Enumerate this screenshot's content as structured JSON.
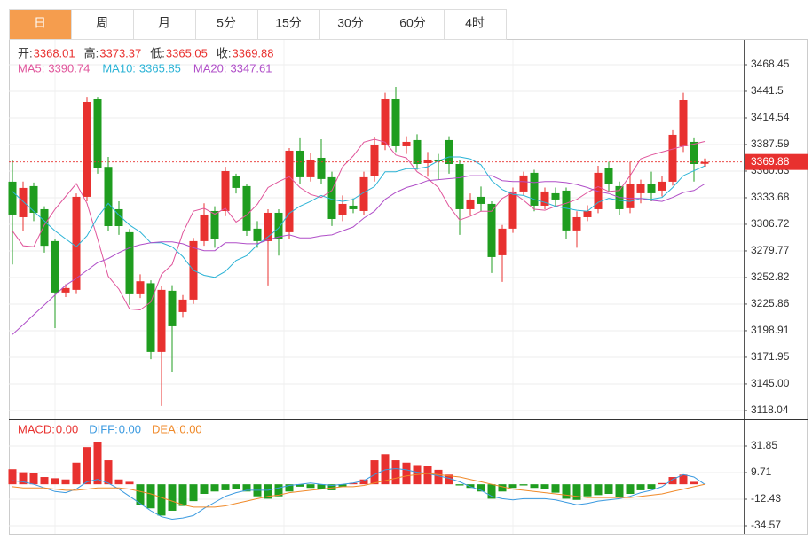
{
  "tabs": [
    "日",
    "周",
    "月",
    "5分",
    "15分",
    "30分",
    "60分",
    "4时"
  ],
  "active_tab": 0,
  "chart_data": [
    {
      "type": "candlestick",
      "ohlc_labels": [
        "开:",
        "高:",
        "低:",
        "收:"
      ],
      "up_color": "#e8312f",
      "down_color": "#1f9d1f",
      "open": [
        3349.9,
        3313.9,
        3345.4,
        3322.0,
        3289.7,
        3237.6,
        3240.3,
        3334.6,
        3433.4,
        3364.9,
        3322.0,
        3298.7,
        3235.8,
        3247.0,
        3177.4,
        3239.4,
        3217.8,
        3230.4,
        3289.7,
        3320.2,
        3320.2,
        3355.3,
        3345.4,
        3302.3,
        3289.7,
        3318.4,
        3298.7,
        3381.3,
        3354.4,
        3374.1,
        3354.4,
        3315.7,
        3325.6,
        3320.2,
        3355.3,
        3386.7,
        3433.4,
        3385.8,
        3392.1,
        3368.7,
        3372.3,
        3392.1,
        3367.8,
        3322.0,
        3334.6,
        3327.4,
        3275.3,
        3302.3,
        3340.0,
        3358.9,
        3325.6,
        3338.2,
        3340.9,
        3300.5,
        3313.9,
        3322.0,
        3363.3,
        3345.4,
        3323.0,
        3338.2,
        3347.2,
        3340.9,
        3349.9,
        3385.8,
        3390.3,
        3368.01
      ],
      "high": [
        3372,
        3350,
        3349,
        3325,
        3292,
        3246,
        3338,
        3436,
        3436,
        3375,
        3330,
        3302,
        3256,
        3250,
        3244,
        3245,
        3235,
        3293,
        3328,
        3325,
        3365,
        3358,
        3348,
        3310,
        3322,
        3322,
        3384,
        3394,
        3379,
        3393,
        3360,
        3336,
        3333,
        3360,
        3395,
        3440,
        3446,
        3396,
        3398,
        3380,
        3378,
        3396,
        3372,
        3338,
        3345,
        3330,
        3306,
        3344,
        3360,
        3362,
        3344,
        3344,
        3344,
        3320,
        3326,
        3366,
        3370,
        3350,
        3370,
        3352,
        3360,
        3356,
        3402,
        3440,
        3394,
        3373.37
      ],
      "low": [
        3266,
        3300,
        3310,
        3278,
        3201.6,
        3233,
        3236,
        3330,
        3358,
        3300,
        3296,
        3225,
        3232,
        3170,
        3122.6,
        3156.7,
        3212,
        3226,
        3285,
        3283,
        3315,
        3338,
        3295,
        3283,
        3244.8,
        3275,
        3292,
        3348,
        3350,
        3348,
        3305,
        3310,
        3318,
        3316,
        3350,
        3382,
        3380,
        3378,
        3362,
        3355,
        3352,
        3358,
        3296,
        3316,
        3320,
        3257.4,
        3248.4,
        3298,
        3336,
        3320,
        3322,
        3325,
        3292,
        3283,
        3310,
        3318,
        3340,
        3316,
        3318,
        3328,
        3330,
        3335,
        3346,
        3380,
        3350,
        3365.05
      ],
      "close": [
        3316.6,
        3343.6,
        3318.4,
        3285.0,
        3237.6,
        3242.1,
        3334.6,
        3430.7,
        3363.3,
        3304.9,
        3304.9,
        3235.8,
        3249.0,
        3177.4,
        3240.3,
        3203.4,
        3230.4,
        3289.7,
        3316.6,
        3291.5,
        3360.6,
        3343.6,
        3300.5,
        3289.7,
        3318.4,
        3291.5,
        3381.3,
        3354.4,
        3372.3,
        3352.6,
        3312.1,
        3327.4,
        3322.0,
        3354.4,
        3386.7,
        3433.4,
        3385.8,
        3390.3,
        3367.8,
        3372.3,
        3370.5,
        3367.8,
        3322.0,
        3331.9,
        3327.4,
        3273.5,
        3302.3,
        3340.0,
        3356.2,
        3325.6,
        3340.0,
        3331.9,
        3300.5,
        3313.9,
        3320.2,
        3358.9,
        3347.2,
        3322.0,
        3347.2,
        3347.2,
        3338.2,
        3349.9,
        3397.5,
        3432.5,
        3367.8,
        3369.88
      ],
      "ma": [
        {
          "name": "MA5:",
          "color": "#e0559b",
          "values": [
            3300,
            3285,
            3284,
            3306,
            3322,
            3335,
            3348,
            3328,
            3292,
            3254,
            3241,
            3221,
            3220,
            3228,
            3256,
            3266,
            3298,
            3320,
            3323,
            3317,
            3323,
            3309,
            3316,
            3327,
            3344,
            3350,
            3355,
            3344,
            3337,
            3334,
            3341,
            3365,
            3376,
            3390,
            3393,
            3390,
            3377,
            3374,
            3360,
            3353,
            3344,
            3325,
            3311,
            3315,
            3320,
            3320,
            3333,
            3339,
            3331,
            3322,
            3321,
            3325,
            3328,
            3332,
            3339,
            3345,
            3340,
            3341,
            3356,
            3373,
            3377,
            3380,
            3383,
            3386,
            3388,
            3390.74
          ]
        },
        {
          "name": "MA10:",
          "color": "#2bb3d6",
          "values": [
            3340,
            3330,
            3320,
            3310,
            3300,
            3292,
            3284,
            3295,
            3314,
            3328,
            3316,
            3306,
            3299,
            3288,
            3288,
            3284,
            3274,
            3260,
            3255,
            3253,
            3259,
            3270,
            3275,
            3286,
            3294,
            3303,
            3318,
            3325,
            3330,
            3336,
            3332,
            3330,
            3332,
            3339,
            3345,
            3360,
            3360,
            3363,
            3363,
            3365,
            3371,
            3375,
            3375,
            3373,
            3367,
            3351,
            3342,
            3337,
            3336,
            3332,
            3329,
            3325,
            3323,
            3321,
            3320,
            3329,
            3333,
            3331,
            3330,
            3333,
            3332,
            3334,
            3344,
            3356,
            3361,
            3365.85
          ]
        },
        {
          "name": "MA20:",
          "color": "#b04fc8",
          "values": [
            3195,
            3205,
            3215,
            3225,
            3235,
            3245,
            3252,
            3260,
            3268,
            3272,
            3278,
            3283,
            3286,
            3288,
            3289,
            3289,
            3287,
            3283,
            3280,
            3280,
            3288,
            3288,
            3287,
            3287,
            3291,
            3294,
            3296,
            3293,
            3293,
            3295,
            3296,
            3300,
            3304,
            3313,
            3320,
            3332,
            3339,
            3344,
            3347,
            3351,
            3352,
            3353,
            3354,
            3356,
            3356,
            3356,
            3351,
            3350,
            3350,
            3349,
            3350,
            3350,
            3349,
            3347,
            3344,
            3340,
            3338,
            3334,
            3333,
            3333,
            3331,
            3330,
            3334,
            3339,
            3341,
            3347.61
          ]
        }
      ],
      "last_price": 3369.88,
      "ylim": [
        3109.9,
        3493.6
      ],
      "yticks": [
        3468.45,
        3441.5,
        3414.54,
        3387.59,
        3360.63,
        3333.68,
        3306.72,
        3279.77,
        3252.82,
        3225.86,
        3198.91,
        3171.95,
        {
          "value": 3145,
          "label": "3145.00"
        },
        3118.04
      ]
    },
    {
      "type": "macd",
      "up_color": "#e8312f",
      "down_color": "#1f9d1f",
      "header": [
        {
          "name": "MACD:",
          "color": "#e8312f",
          "current": {
            "value": 0,
            "label": "0.00"
          }
        },
        {
          "name": "DIFF:",
          "color": "#3b9ae0",
          "current": {
            "value": 0,
            "label": "0.00"
          }
        },
        {
          "name": "DEA:",
          "color": "#f08a2a",
          "current": {
            "value": 0,
            "label": "0.00"
          }
        }
      ],
      "values": [
        12.5,
        10,
        9,
        6,
        5,
        4,
        18,
        31,
        35,
        20,
        4,
        2,
        -17,
        -20,
        -26,
        -22,
        -18,
        -14,
        -8,
        -6,
        -5,
        -4,
        -6,
        -10,
        -12,
        -10,
        -6,
        -2,
        -3,
        -4,
        -5,
        -2,
        1,
        4,
        20,
        25,
        20,
        18,
        16,
        15,
        12,
        8,
        -1,
        -3,
        -6,
        -12,
        -6,
        -3,
        -1,
        -3,
        -4,
        -7,
        -12,
        -13,
        -10,
        -9,
        -8,
        -11,
        -8,
        -5,
        -4,
        1,
        6,
        8,
        2,
        0
      ],
      "series": [
        {
          "name": "DIFF",
          "color": "#3b9ae0",
          "values": [
            3,
            2,
            0,
            -3,
            -6,
            -7,
            -4,
            2,
            4,
            1,
            -4,
            -10,
            -16,
            -22,
            -27,
            -29,
            -28,
            -26,
            -20,
            -15,
            -10,
            -7,
            -5,
            -5,
            -5,
            -3,
            -1,
            0,
            1,
            0,
            -1,
            0,
            1,
            3,
            8,
            12,
            13,
            12,
            10,
            9,
            7,
            5,
            2,
            -2,
            -5,
            -10,
            -12,
            -13,
            -12,
            -12,
            -12,
            -13,
            -15,
            -17,
            -16,
            -14,
            -13,
            -12,
            -10,
            -7,
            -5,
            -2,
            4,
            8,
            6,
            0
          ]
        },
        {
          "name": "DEA",
          "color": "#f08a2a",
          "values": [
            -2,
            -3,
            -3,
            -3,
            -4,
            -5,
            -5,
            -4,
            -3,
            -3,
            -3,
            -4,
            -6,
            -8,
            -11,
            -14,
            -17,
            -19,
            -19,
            -19,
            -18,
            -16,
            -14,
            -12,
            -10,
            -9,
            -7,
            -6,
            -5,
            -4,
            -3,
            -2,
            -2,
            -1,
            1,
            3,
            5,
            7,
            8,
            9,
            8,
            7,
            6,
            4,
            2,
            0,
            -2,
            -4,
            -5,
            -6,
            -7,
            -8,
            -9,
            -10,
            -11,
            -11,
            -11,
            -11,
            -11,
            -10,
            -9,
            -8,
            -6,
            -4,
            -2,
            0
          ]
        }
      ],
      "ylim": [
        -41.95,
        53.25
      ],
      "yticks": [
        31.85,
        9.71,
        -12.43,
        -34.57
      ]
    }
  ]
}
